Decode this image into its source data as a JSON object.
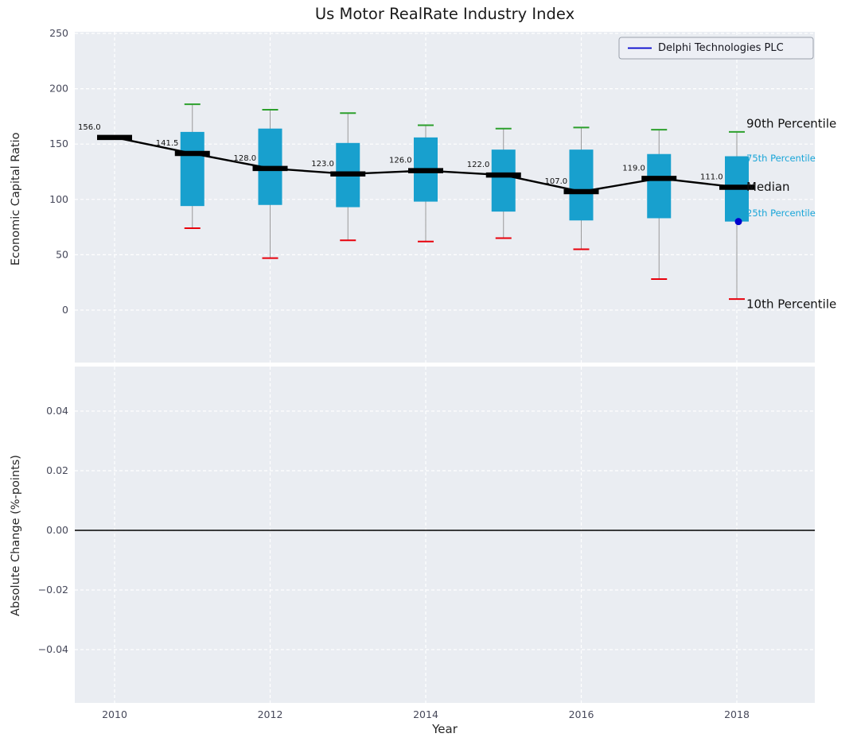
{
  "chart": {
    "title": "Us Motor RealRate Industry Index"
  },
  "chart_data": [
    {
      "type": "boxplot+line",
      "title": "Us Motor RealRate Industry Index",
      "ylabel": "Economic Capital Ratio",
      "ylim": [
        -47,
        251
      ],
      "yticks": [
        0,
        50,
        100,
        150,
        200,
        250
      ],
      "ytick_labels": [
        "0",
        "50",
        "100",
        "150",
        "200",
        "250"
      ],
      "xticks": [
        2010,
        2012,
        2014,
        2016,
        2018
      ],
      "xtick_labels": [
        "2010",
        "2012",
        "2014",
        "2016",
        "2018"
      ],
      "grid": true,
      "series": [
        {
          "name": "Median",
          "type": "line",
          "color": "#000000",
          "x": [
            2010,
            2011,
            2012,
            2013,
            2014,
            2015,
            2016,
            2017,
            2018
          ],
          "values": [
            156.0,
            141.5,
            128.0,
            123.0,
            126.0,
            122.0,
            107.0,
            119.0,
            111.0
          ],
          "point_labels": [
            "156.0",
            "141.5",
            "128.0",
            "123.0",
            "126.0",
            "122.0",
            "107.0",
            "119.0",
            "111.0"
          ]
        },
        {
          "name": "Delphi Technologies PLC",
          "type": "scatter",
          "color": "#0000cd",
          "x": [
            2018
          ],
          "values": [
            80
          ]
        }
      ],
      "boxes": [
        {
          "x": 2011,
          "p90": 186,
          "p75": 161,
          "p25": 94,
          "p10": 74
        },
        {
          "x": 2012,
          "p90": 181,
          "p75": 164,
          "p25": 95,
          "p10": 47
        },
        {
          "x": 2013,
          "p90": 178,
          "p75": 151,
          "p25": 93,
          "p10": 63
        },
        {
          "x": 2014,
          "p90": 167,
          "p75": 156,
          "p25": 98,
          "p10": 62
        },
        {
          "x": 2015,
          "p90": 164,
          "p75": 145,
          "p25": 89,
          "p10": 65
        },
        {
          "x": 2016,
          "p90": 165,
          "p75": 145,
          "p25": 81,
          "p10": 55
        },
        {
          "x": 2017,
          "p90": 163,
          "p75": 141,
          "p25": 83,
          "p10": 28
        },
        {
          "x": 2018,
          "p90": 161,
          "p75": 139,
          "p25": 80,
          "p10": 10
        }
      ],
      "box_color": "#18a0ce",
      "cap_top_color": "#2ca02c",
      "cap_bottom_color": "#e8000b",
      "whisker_color": "#9a9a9a",
      "annotations": [
        {
          "text": "90th Percentile",
          "value": 161,
          "color": "#111111",
          "size": "large"
        },
        {
          "text": "75th Percentile",
          "value": 139,
          "color": "#18a5d8",
          "size": "small"
        },
        {
          "text": "Median",
          "value": 111,
          "color": "#111111",
          "size": "large"
        },
        {
          "text": "25th Percentile",
          "value": 80,
          "color": "#18a5d8",
          "size": "small"
        },
        {
          "text": "10th Percentile",
          "value": 10,
          "color": "#111111",
          "size": "large"
        }
      ],
      "legend": {
        "label": "Delphi Technologies PLC",
        "line_color": "#0000cd",
        "position": "upper right"
      }
    },
    {
      "type": "line",
      "ylabel": "Absolute Change (%-points)",
      "xlabel": "Year",
      "ylim": [
        -0.058,
        0.055
      ],
      "yticks": [
        0.04,
        0.02,
        0.0,
        -0.02,
        -0.04
      ],
      "ytick_labels": [
        "0.04",
        "0.02",
        "0.00",
        "−0.02",
        "−0.04"
      ],
      "xticks": [
        2010,
        2012,
        2014,
        2016,
        2018
      ],
      "xtick_labels": [
        "2010",
        "2012",
        "2014",
        "2016",
        "2018"
      ],
      "zero_line": 0.0,
      "series": []
    }
  ]
}
